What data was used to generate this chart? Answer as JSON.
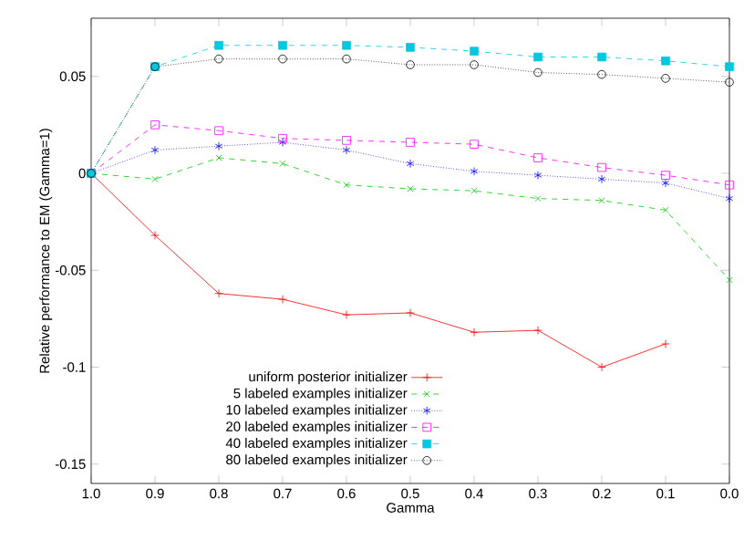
{
  "chart_data": {
    "type": "line",
    "xlabel": "Gamma",
    "ylabel": "Relative performance to EM (Gamma=1)",
    "x": [
      1.0,
      0.9,
      0.8,
      0.7,
      0.6,
      0.5,
      0.4,
      0.3,
      0.2,
      0.1,
      0.0
    ],
    "series": [
      {
        "name": "uniform posterior initializer",
        "color": "#ff0000",
        "marker": "plus",
        "line_style": "solid",
        "values": [
          0,
          -0.032,
          -0.062,
          -0.065,
          -0.073,
          -0.072,
          -0.082,
          -0.081,
          -0.1,
          -0.088,
          null
        ]
      },
      {
        "name": "5 labeled examples initializer",
        "color": "#00cc00",
        "marker": "cross",
        "line_style": "dashed",
        "values": [
          0,
          -0.003,
          0.008,
          0.005,
          -0.006,
          -0.008,
          -0.009,
          -0.013,
          -0.014,
          -0.019,
          -0.055
        ]
      },
      {
        "name": "10 labeled examples initializer",
        "color": "#0000ff",
        "marker": "cross",
        "line_style": "dotted",
        "values": [
          0,
          0.012,
          0.014,
          0.016,
          0.012,
          0.005,
          0.001,
          -0.001,
          -0.003,
          -0.005,
          -0.013
        ]
      },
      {
        "name": "20 labeled examples initializer",
        "color": "#ff00ff",
        "marker": "square",
        "line_style": "dashed",
        "values": [
          0,
          0.025,
          0.022,
          0.018,
          0.017,
          0.016,
          0.015,
          0.008,
          0.003,
          -0.001,
          -0.006
        ]
      },
      {
        "name": "40 labeled examples initializer",
        "color": "#00c8e0",
        "marker": "square",
        "line_style": "dashed",
        "values": [
          0,
          0.055,
          0.066,
          0.066,
          0.066,
          0.065,
          0.063,
          0.06,
          0.06,
          0.058,
          0.055
        ]
      },
      {
        "name": "80 labeled examples initializer",
        "color": "#000000",
        "marker": "circle",
        "line_style": "dotted",
        "values": [
          0,
          0.055,
          0.059,
          0.059,
          0.059,
          0.056,
          0.056,
          0.052,
          0.051,
          0.049,
          0.047
        ]
      }
    ],
    "xlim": [
      1.0,
      0.0
    ],
    "xticks": [
      {
        "value": 1.0,
        "label": "1.0"
      },
      {
        "value": 0.9,
        "label": "0.9"
      },
      {
        "value": 0.8,
        "label": "0.8"
      },
      {
        "value": 0.7,
        "label": "0.7"
      },
      {
        "value": 0.6,
        "label": "0.6"
      },
      {
        "value": 0.5,
        "label": "0.5"
      },
      {
        "value": 0.4,
        "label": "0.4"
      },
      {
        "value": 0.3,
        "label": "0.3"
      },
      {
        "value": 0.2,
        "label": "0.2"
      },
      {
        "value": 0.1,
        "label": "0.1"
      },
      {
        "value": 0.0,
        "label": "0.0"
      }
    ],
    "ylim": [
      -0.16,
      0.08
    ],
    "yticks": [
      -0.15,
      -0.1,
      -0.05,
      0,
      0.05
    ],
    "legend": "bottom",
    "grid": false
  }
}
